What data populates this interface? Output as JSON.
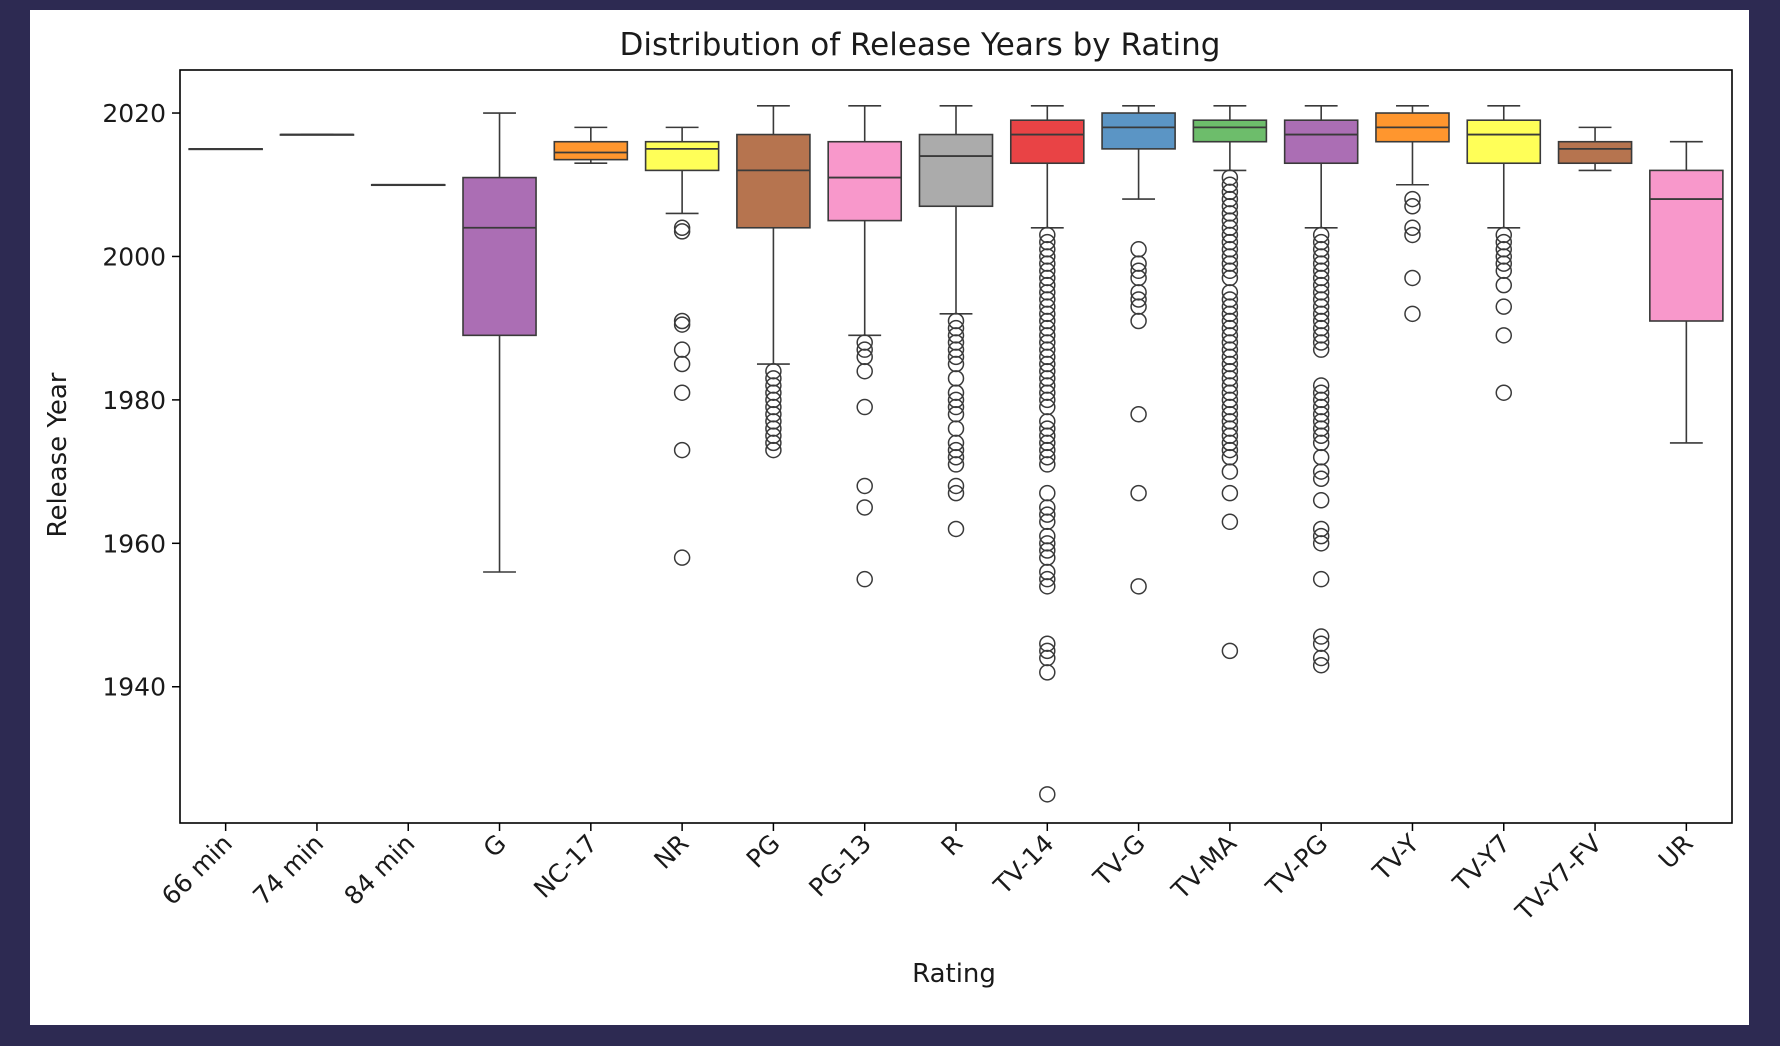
{
  "chart_data": {
    "type": "box",
    "title": "Distribution of Release Years by Rating",
    "xlabel": "Rating",
    "ylabel": "Release Year",
    "ylim": [
      1921,
      2026
    ],
    "yticks": [
      1940,
      1960,
      1980,
      2000,
      2020
    ],
    "grid": false,
    "legend": "none",
    "categories": [
      "66 min",
      "74 min",
      "84 min",
      "G",
      "NC-17",
      "NR",
      "PG",
      "PG-13",
      "R",
      "TV-14",
      "TV-G",
      "TV-MA",
      "TV-PG",
      "TV-Y",
      "TV-Y7",
      "TV-Y7-FV",
      "UR"
    ],
    "boxes": [
      {
        "category": "66 min",
        "whisker_low": 2015,
        "q1": 2015,
        "median": 2015,
        "q3": 2015,
        "whisker_high": 2015,
        "color": "#e41a1c",
        "outliers": []
      },
      {
        "category": "74 min",
        "whisker_low": 2017,
        "q1": 2017,
        "median": 2017,
        "q3": 2017,
        "whisker_high": 2017,
        "color": "#377eb8",
        "outliers": []
      },
      {
        "category": "84 min",
        "whisker_low": 2010,
        "q1": 2010,
        "median": 2010,
        "q3": 2010,
        "whisker_high": 2010,
        "color": "#4daf4a",
        "outliers": []
      },
      {
        "category": "G",
        "whisker_low": 1956,
        "q1": 1989,
        "median": 2004,
        "q3": 2011,
        "whisker_high": 2020,
        "color": "#984ea3",
        "outliers": []
      },
      {
        "category": "NC-17",
        "whisker_low": 2013,
        "q1": 2013.5,
        "median": 2014.5,
        "q3": 2016,
        "whisker_high": 2018,
        "color": "#ff7f00",
        "outliers": []
      },
      {
        "category": "NR",
        "whisker_low": 2006,
        "q1": 2012,
        "median": 2015,
        "q3": 2016,
        "whisker_high": 2018,
        "color": "#ffff33",
        "outliers": [
          2004,
          2003.5,
          1991,
          1990.5,
          1987,
          1985,
          1981,
          1973,
          1958
        ]
      },
      {
        "category": "PG",
        "whisker_low": 1985,
        "q1": 2004,
        "median": 2012,
        "q3": 2017,
        "whisker_high": 2021,
        "color": "#a65628",
        "outliers": [
          1984,
          1983,
          1982,
          1981,
          1980,
          1979,
          1978,
          1977,
          1976,
          1975,
          1974,
          1973
        ]
      },
      {
        "category": "PG-13",
        "whisker_low": 1989,
        "q1": 2005,
        "median": 2011,
        "q3": 2016,
        "whisker_high": 2021,
        "color": "#f781bf",
        "outliers": [
          1988,
          1987,
          1986,
          1984,
          1979,
          1968,
          1965,
          1955
        ]
      },
      {
        "category": "R",
        "whisker_low": 1992,
        "q1": 2007,
        "median": 2014,
        "q3": 2017,
        "whisker_high": 2021,
        "color": "#999999",
        "outliers": [
          1991,
          1990,
          1989,
          1988,
          1987,
          1986,
          1985,
          1983,
          1981,
          1980,
          1979,
          1978,
          1976,
          1974,
          1973,
          1972,
          1971,
          1968,
          1967,
          1962
        ]
      },
      {
        "category": "TV-14",
        "whisker_low": 2004,
        "q1": 2013,
        "median": 2017,
        "q3": 2019,
        "whisker_high": 2021,
        "color": "#e41a1c",
        "outliers": [
          2003,
          2002,
          2001,
          2000,
          1999,
          1998,
          1997,
          1996,
          1995,
          1994,
          1993,
          1992,
          1991,
          1990,
          1989,
          1988,
          1987,
          1986,
          1985,
          1984,
          1983,
          1982,
          1981,
          1980,
          1979,
          1977,
          1976,
          1975,
          1974,
          1973,
          1972,
          1971,
          1967,
          1965,
          1964,
          1963,
          1961,
          1960,
          1959,
          1958,
          1956,
          1955,
          1954,
          1946,
          1945,
          1944,
          1942,
          1925
        ]
      },
      {
        "category": "TV-G",
        "whisker_low": 2008,
        "q1": 2015,
        "median": 2018,
        "q3": 2020,
        "whisker_high": 2021,
        "color": "#377eb8",
        "outliers": [
          2001,
          1999,
          1998,
          1997,
          1995,
          1994,
          1993,
          1991,
          1978,
          1967,
          1954
        ]
      },
      {
        "category": "TV-MA",
        "whisker_low": 2012,
        "q1": 2016,
        "median": 2018,
        "q3": 2019,
        "whisker_high": 2021,
        "color": "#4daf4a",
        "outliers": [
          2011,
          2010,
          2009,
          2008,
          2007,
          2006,
          2005,
          2004,
          2003,
          2002,
          2001,
          2000,
          1999,
          1998,
          1997,
          1995,
          1994,
          1993,
          1992,
          1991,
          1990,
          1989,
          1988,
          1987,
          1986,
          1985,
          1984,
          1983,
          1982,
          1981,
          1980,
          1979,
          1978,
          1977,
          1976,
          1975,
          1974,
          1973,
          1972,
          1970,
          1967,
          1963,
          1945
        ]
      },
      {
        "category": "TV-PG",
        "whisker_low": 2004,
        "q1": 2013,
        "median": 2017,
        "q3": 2019,
        "whisker_high": 2021,
        "color": "#984ea3",
        "outliers": [
          2003,
          2002,
          2001,
          2000,
          1999,
          1998,
          1997,
          1996,
          1995,
          1994,
          1993,
          1992,
          1991,
          1990,
          1989,
          1988,
          1987,
          1982,
          1981,
          1980,
          1979,
          1978,
          1977,
          1976,
          1975,
          1974,
          1972,
          1970,
          1969,
          1966,
          1962,
          1961,
          1960,
          1955,
          1947,
          1946,
          1944,
          1943
        ]
      },
      {
        "category": "TV-Y",
        "whisker_low": 2010,
        "q1": 2016,
        "median": 2018,
        "q3": 2020,
        "whisker_high": 2021,
        "color": "#ff7f00",
        "outliers": [
          2008,
          2007,
          2004,
          2003,
          1997,
          1992
        ]
      },
      {
        "category": "TV-Y7",
        "whisker_low": 2004,
        "q1": 2013,
        "median": 2017,
        "q3": 2019,
        "whisker_high": 2021,
        "color": "#ffff33",
        "outliers": [
          2003,
          2002,
          2001,
          2000,
          1999,
          1998,
          1996,
          1993,
          1989,
          1981
        ]
      },
      {
        "category": "TV-Y7-FV",
        "whisker_low": 2012,
        "q1": 2013,
        "median": 2015,
        "q3": 2016,
        "whisker_high": 2018,
        "color": "#a65628",
        "outliers": []
      },
      {
        "category": "UR",
        "whisker_low": 1974,
        "q1": 1991,
        "median": 2008,
        "q3": 2012,
        "whisker_high": 2016,
        "color": "#f781bf",
        "outliers": []
      }
    ]
  }
}
